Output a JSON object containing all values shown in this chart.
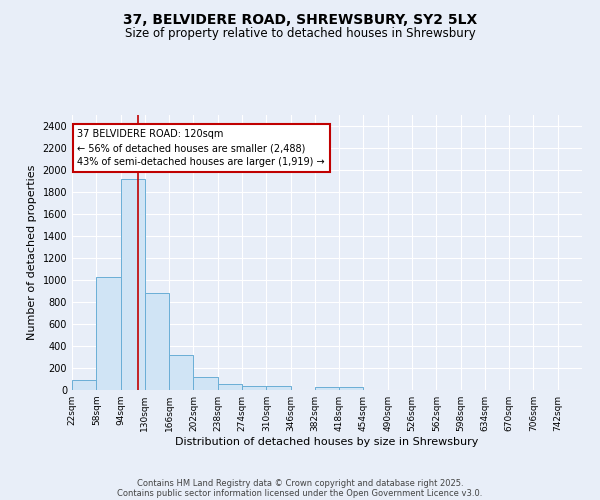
{
  "title_line1": "37, BELVIDERE ROAD, SHREWSBURY, SY2 5LX",
  "title_line2": "Size of property relative to detached houses in Shrewsbury",
  "xlabel": "Distribution of detached houses by size in Shrewsbury",
  "ylabel": "Number of detached properties",
  "bin_labels": [
    "22sqm",
    "58sqm",
    "94sqm",
    "130sqm",
    "166sqm",
    "202sqm",
    "238sqm",
    "274sqm",
    "310sqm",
    "346sqm",
    "382sqm",
    "418sqm",
    "454sqm",
    "490sqm",
    "526sqm",
    "562sqm",
    "598sqm",
    "634sqm",
    "670sqm",
    "706sqm",
    "742sqm"
  ],
  "bin_edges": [
    22,
    58,
    94,
    130,
    166,
    202,
    238,
    274,
    310,
    346,
    382,
    418,
    454,
    490,
    526,
    562,
    598,
    634,
    670,
    706,
    742
  ],
  "bar_heights": [
    90,
    1030,
    1920,
    880,
    320,
    120,
    55,
    40,
    35,
    0,
    30,
    25,
    0,
    0,
    0,
    0,
    0,
    0,
    0,
    0,
    0
  ],
  "bar_color": "#d0e4f5",
  "bar_edge_color": "#6aaed6",
  "property_line_x": 120,
  "property_line_color": "#c00000",
  "annotation_line1": "37 BELVIDERE ROAD: 120sqm",
  "annotation_line2": "← 56% of detached houses are smaller (2,488)",
  "annotation_line3": "43% of semi-detached houses are larger (1,919) →",
  "annotation_box_color": "#ffffff",
  "annotation_box_edge_color": "#c00000",
  "ylim": [
    0,
    2500
  ],
  "yticks": [
    0,
    200,
    400,
    600,
    800,
    1000,
    1200,
    1400,
    1600,
    1800,
    2000,
    2200,
    2400
  ],
  "bg_color": "#e8eef8",
  "plot_bg_color": "#e8eef8",
  "grid_color": "#ffffff",
  "footer_line1": "Contains HM Land Registry data © Crown copyright and database right 2025.",
  "footer_line2": "Contains public sector information licensed under the Open Government Licence v3.0."
}
